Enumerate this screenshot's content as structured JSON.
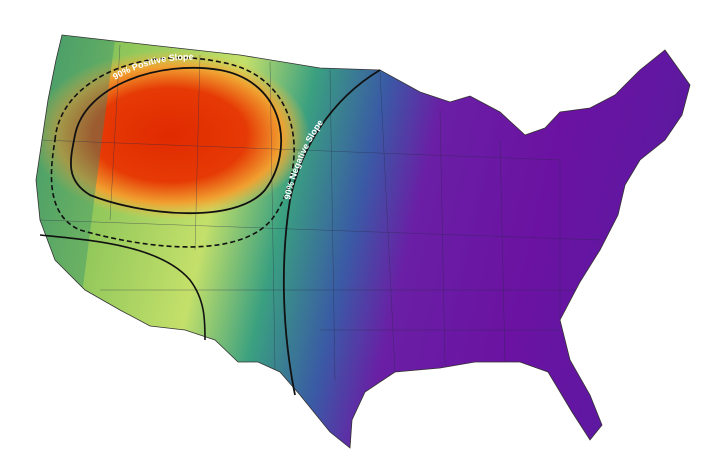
{
  "contours": [
    {
      "label": "90% Positive Slope"
    },
    {
      "label": "90% Negative Slope"
    }
  ]
}
